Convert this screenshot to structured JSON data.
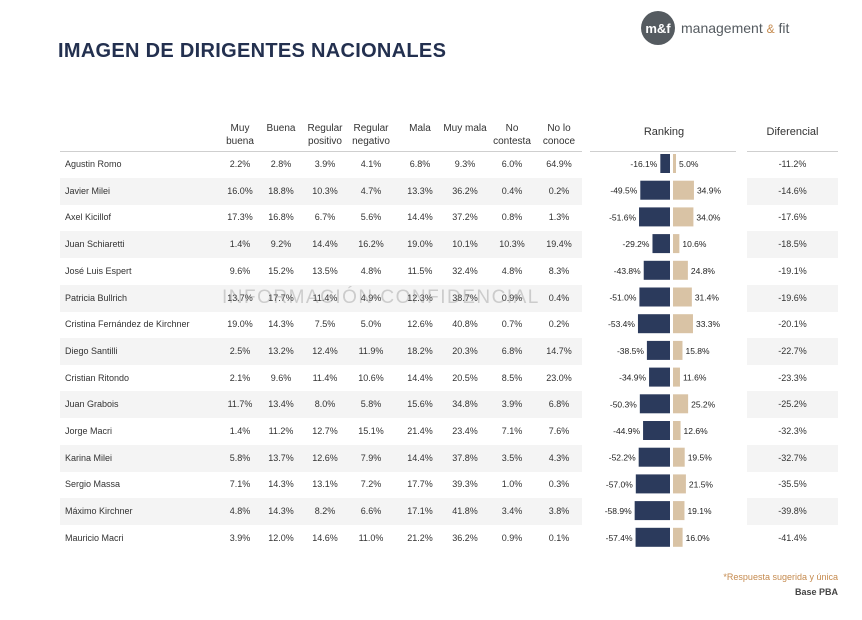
{
  "title": "IMAGEN DE DIRIGENTES NACIONALES",
  "logo": {
    "mark": "m&f",
    "text_a": "management",
    "amp": "&",
    "text_b": "fit"
  },
  "watermark": "INFORMACIÓN CONFIDENCIAL",
  "columns": [
    "Muy buena",
    "Buena",
    "Regular positivo",
    "Regular negativo",
    "Mala",
    "Muy mala",
    "No contesta",
    "No lo conoce"
  ],
  "ranking_header": "Ranking",
  "diferencial_header": "Diferencial",
  "footer": {
    "note": "*Respuesta sugerida y única",
    "base": "Base PBA"
  },
  "colors": {
    "negative": "#2b3a5c",
    "positive": "#d9c3a5",
    "title": "#23304f",
    "accent": "#c58a4e"
  },
  "chart_data": {
    "type": "table",
    "rows": [
      {
        "name": "Agustin Romo",
        "values": [
          "2.2%",
          "2.8%",
          "3.9%",
          "4.1%",
          "6.8%",
          "9.3%",
          "6.0%",
          "64.9%"
        ],
        "neg": -16.1,
        "pos": 5.0,
        "neg_label": "-16.1%",
        "pos_label": "5.0%",
        "dif": "-11.2%"
      },
      {
        "name": "Javier Milei",
        "values": [
          "16.0%",
          "18.8%",
          "10.3%",
          "4.7%",
          "13.3%",
          "36.2%",
          "0.4%",
          "0.2%"
        ],
        "neg": -49.5,
        "pos": 34.9,
        "neg_label": "-49.5%",
        "pos_label": "34.9%",
        "dif": "-14.6%"
      },
      {
        "name": "Axel Kicillof",
        "values": [
          "17.3%",
          "16.8%",
          "6.7%",
          "5.6%",
          "14.4%",
          "37.2%",
          "0.8%",
          "1.3%"
        ],
        "neg": -51.6,
        "pos": 34.0,
        "neg_label": "-51.6%",
        "pos_label": "34.0%",
        "dif": "-17.6%"
      },
      {
        "name": "Juan Schiaretti",
        "values": [
          "1.4%",
          "9.2%",
          "14.4%",
          "16.2%",
          "19.0%",
          "10.1%",
          "10.3%",
          "19.4%"
        ],
        "neg": -29.2,
        "pos": 10.6,
        "neg_label": "-29.2%",
        "pos_label": "10.6%",
        "dif": "-18.5%"
      },
      {
        "name": "José Luis Espert",
        "values": [
          "9.6%",
          "15.2%",
          "13.5%",
          "4.8%",
          "11.5%",
          "32.4%",
          "4.8%",
          "8.3%"
        ],
        "neg": -43.8,
        "pos": 24.8,
        "neg_label": "-43.8%",
        "pos_label": "24.8%",
        "dif": "-19.1%"
      },
      {
        "name": "Patricia Bullrich",
        "values": [
          "13.7%",
          "17.7%",
          "11.4%",
          "4.9%",
          "12.3%",
          "38.7%",
          "0.9%",
          "0.4%"
        ],
        "neg": -51.0,
        "pos": 31.4,
        "neg_label": "-51.0%",
        "pos_label": "31.4%",
        "dif": "-19.6%"
      },
      {
        "name": "Cristina Fernández de Kirchner",
        "values": [
          "19.0%",
          "14.3%",
          "7.5%",
          "5.0%",
          "12.6%",
          "40.8%",
          "0.7%",
          "0.2%"
        ],
        "neg": -53.4,
        "pos": 33.3,
        "neg_label": "-53.4%",
        "pos_label": "33.3%",
        "dif": "-20.1%"
      },
      {
        "name": "Diego Santilli",
        "values": [
          "2.5%",
          "13.2%",
          "12.4%",
          "11.9%",
          "18.2%",
          "20.3%",
          "6.8%",
          "14.7%"
        ],
        "neg": -38.5,
        "pos": 15.8,
        "neg_label": "-38.5%",
        "pos_label": "15.8%",
        "dif": "-22.7%"
      },
      {
        "name": "Cristian Ritondo",
        "values": [
          "2.1%",
          "9.6%",
          "11.4%",
          "10.6%",
          "14.4%",
          "20.5%",
          "8.5%",
          "23.0%"
        ],
        "neg": -34.9,
        "pos": 11.6,
        "neg_label": "-34.9%",
        "pos_label": "11.6%",
        "dif": "-23.3%"
      },
      {
        "name": "Juan Grabois",
        "values": [
          "11.7%",
          "13.4%",
          "8.0%",
          "5.8%",
          "15.6%",
          "34.8%",
          "3.9%",
          "6.8%"
        ],
        "neg": -50.3,
        "pos": 25.2,
        "neg_label": "-50.3%",
        "pos_label": "25.2%",
        "dif": "-25.2%"
      },
      {
        "name": "Jorge Macri",
        "values": [
          "1.4%",
          "11.2%",
          "12.7%",
          "15.1%",
          "21.4%",
          "23.4%",
          "7.1%",
          "7.6%"
        ],
        "neg": -44.9,
        "pos": 12.6,
        "neg_label": "-44.9%",
        "pos_label": "12.6%",
        "dif": "-32.3%"
      },
      {
        "name": "Karina Milei",
        "values": [
          "5.8%",
          "13.7%",
          "12.6%",
          "7.9%",
          "14.4%",
          "37.8%",
          "3.5%",
          "4.3%"
        ],
        "neg": -52.2,
        "pos": 19.5,
        "neg_label": "-52.2%",
        "pos_label": "19.5%",
        "dif": "-32.7%"
      },
      {
        "name": "Sergio Massa",
        "values": [
          "7.1%",
          "14.3%",
          "13.1%",
          "7.2%",
          "17.7%",
          "39.3%",
          "1.0%",
          "0.3%"
        ],
        "neg": -57.0,
        "pos": 21.5,
        "neg_label": "-57.0%",
        "pos_label": "21.5%",
        "dif": "-35.5%"
      },
      {
        "name": "Máximo Kirchner",
        "values": [
          "4.8%",
          "14.3%",
          "8.2%",
          "6.6%",
          "17.1%",
          "41.8%",
          "3.4%",
          "3.8%"
        ],
        "neg": -58.9,
        "pos": 19.1,
        "neg_label": "-58.9%",
        "pos_label": "19.1%",
        "dif": "-39.8%"
      },
      {
        "name": "Mauricio Macri",
        "values": [
          "3.9%",
          "12.0%",
          "14.6%",
          "11.0%",
          "21.2%",
          "36.2%",
          "0.9%",
          "0.1%"
        ],
        "neg": -57.4,
        "pos": 16.0,
        "neg_label": "-57.4%",
        "pos_label": "16.0%",
        "dif": "-41.4%"
      }
    ]
  }
}
